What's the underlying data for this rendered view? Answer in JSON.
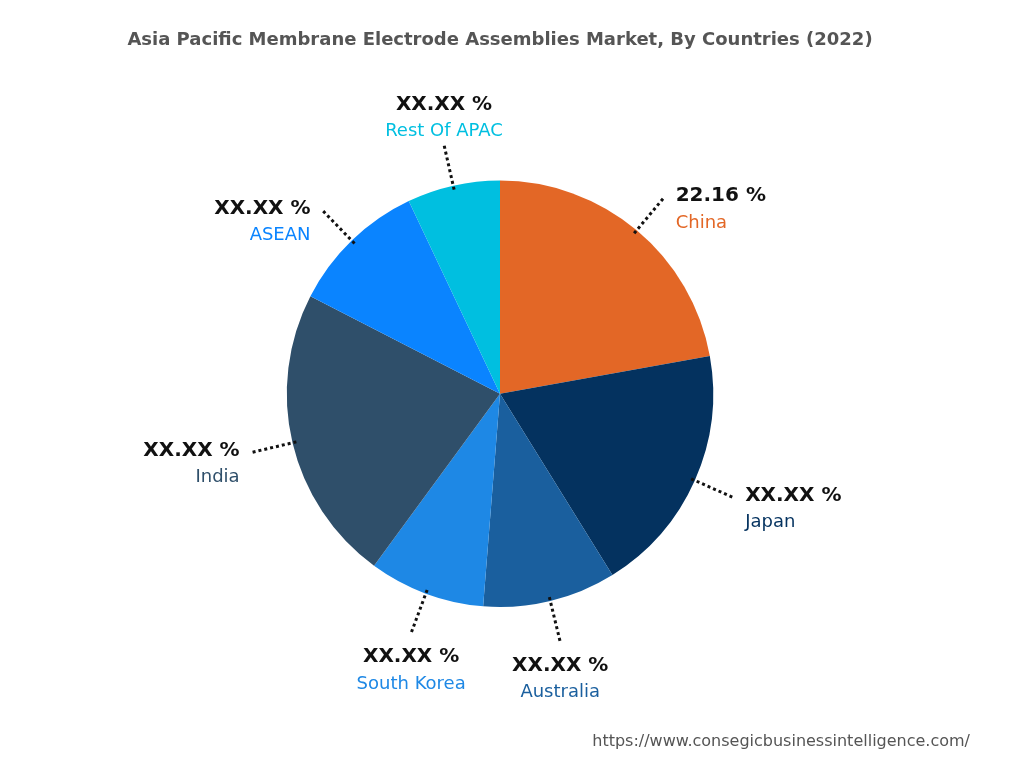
{
  "chart_data": {
    "type": "pie",
    "title": "Asia Pacific Membrane Electrode Assemblies Market, By Countries (2022)",
    "categories": [
      "China",
      "Japan",
      "Australia",
      "South Korea",
      "India",
      "ASEAN",
      "Rest Of APAC"
    ],
    "values": [
      22.16,
      19.0,
      10.1,
      8.8,
      22.5,
      10.4,
      7.04
    ],
    "value_labels": [
      "22.16 %",
      "XX.XX %",
      "XX.XX %",
      "XX.XX %",
      "XX.XX %",
      "XX.XX %",
      "XX.XX %"
    ],
    "colors": [
      "#e36726",
      "#04325f",
      "#1a5f9e",
      "#1e88e5",
      "#2f4f6a",
      "#0a84ff",
      "#00bfe0"
    ],
    "data_labels": true,
    "source": "https://www.consegicbusinessintelligence.com/"
  }
}
